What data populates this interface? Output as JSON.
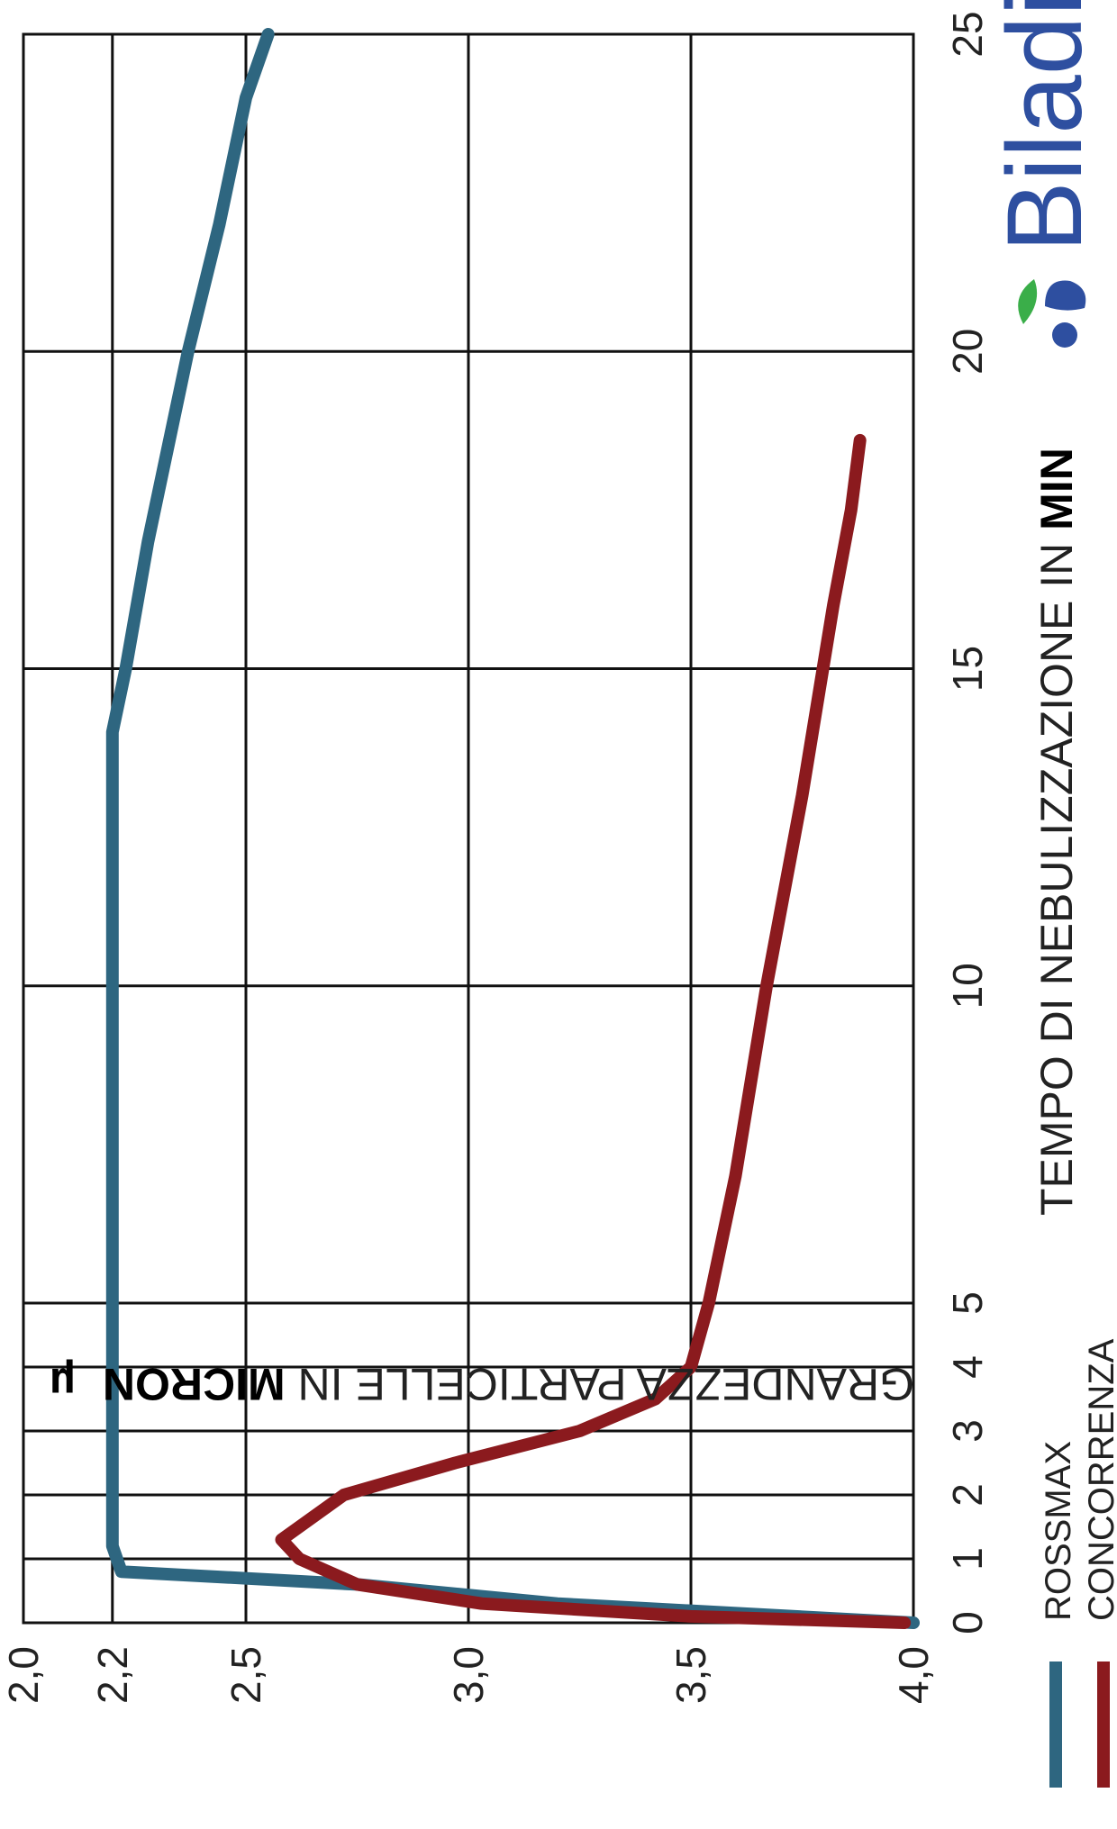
{
  "chart_data": {
    "type": "line",
    "xlabel": {
      "prefix": "TEMPO DI NEBULIZZAZIONE IN ",
      "bold": "MIN"
    },
    "ylabel": {
      "prefix": "GRANDEZZA PARTICELLE IN ",
      "bold": "MICRON",
      "unit": "µ"
    },
    "x_ticks": [
      "0",
      "1",
      "2",
      "3",
      "4",
      "5",
      "10",
      "15",
      "20",
      "25"
    ],
    "y_ticks": [
      "2,0",
      "2,2",
      "2,5",
      "3,0",
      "3,5",
      "4,0"
    ],
    "xlim": [
      0,
      25
    ],
    "ylim": [
      2.0,
      4.0
    ],
    "y_inverted": true,
    "grid": true,
    "legend_position": "bottom-left",
    "series": [
      {
        "name": "ROSSMAX",
        "color": "#2e6680",
        "points": [
          [
            0,
            4.0
          ],
          [
            0.3,
            3.2
          ],
          [
            0.6,
            2.75
          ],
          [
            0.8,
            2.22
          ],
          [
            1.2,
            2.2
          ],
          [
            3,
            2.2
          ],
          [
            5,
            2.2
          ],
          [
            10,
            2.2
          ],
          [
            14,
            2.2
          ],
          [
            15,
            2.23
          ],
          [
            17,
            2.28
          ],
          [
            20,
            2.37
          ],
          [
            22,
            2.44
          ],
          [
            24,
            2.5
          ],
          [
            25,
            2.55
          ]
        ]
      },
      {
        "name": "CONCORRENZA",
        "color": "#8b1a1e",
        "points": [
          [
            0,
            3.98
          ],
          [
            0.1,
            3.5
          ],
          [
            0.3,
            3.03
          ],
          [
            0.6,
            2.75
          ],
          [
            1,
            2.62
          ],
          [
            1.3,
            2.58
          ],
          [
            2,
            2.72
          ],
          [
            2.5,
            2.97
          ],
          [
            3,
            3.25
          ],
          [
            3.5,
            3.42
          ],
          [
            4,
            3.5
          ],
          [
            5,
            3.54
          ],
          [
            7,
            3.6
          ],
          [
            10,
            3.67
          ],
          [
            13,
            3.75
          ],
          [
            16,
            3.82
          ],
          [
            17.5,
            3.86
          ],
          [
            18.6,
            3.88
          ]
        ]
      }
    ]
  },
  "logo": {
    "text": "Biladi",
    "colors": [
      "#2e4fa0",
      "#3aae49"
    ]
  }
}
